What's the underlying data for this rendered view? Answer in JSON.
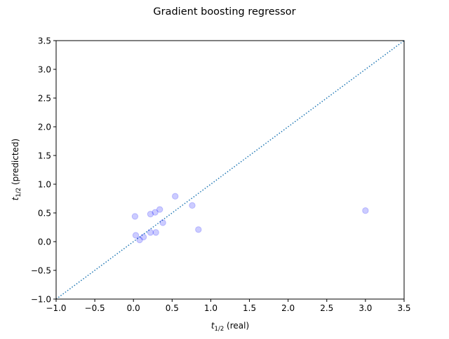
{
  "chart_data": {
    "type": "scatter",
    "title": "Gradient boosting regressor",
    "xlabel": {
      "main": "t",
      "sub": "1/2",
      "rest": " (real)"
    },
    "ylabel": {
      "main": "t",
      "sub": "1/2",
      "rest": " (predicted)"
    },
    "xlim": [
      -1.0,
      3.5
    ],
    "ylim": [
      -1.0,
      3.5
    ],
    "xticks": [
      -1.0,
      -0.5,
      0.0,
      0.5,
      1.0,
      1.5,
      2.0,
      2.5,
      3.0,
      3.5
    ],
    "yticks": [
      -1.0,
      -0.5,
      0.0,
      0.5,
      1.0,
      1.5,
      2.0,
      2.5,
      3.0,
      3.5
    ],
    "grid": false,
    "reference_line": {
      "style": "dotted",
      "color": "#1f77b4",
      "from": [
        -1.0,
        -1.0
      ],
      "to": [
        3.5,
        3.5
      ]
    },
    "marker_color": "#0000ff",
    "marker_alpha": 0.2,
    "points": [
      {
        "x": 0.02,
        "y": 0.44
      },
      {
        "x": 0.03,
        "y": 0.11
      },
      {
        "x": 0.08,
        "y": 0.03
      },
      {
        "x": 0.13,
        "y": 0.08
      },
      {
        "x": 0.22,
        "y": 0.48
      },
      {
        "x": 0.22,
        "y": 0.16
      },
      {
        "x": 0.28,
        "y": 0.51
      },
      {
        "x": 0.29,
        "y": 0.16
      },
      {
        "x": 0.34,
        "y": 0.56
      },
      {
        "x": 0.38,
        "y": 0.33
      },
      {
        "x": 0.54,
        "y": 0.79
      },
      {
        "x": 0.76,
        "y": 0.63
      },
      {
        "x": 0.84,
        "y": 0.21
      },
      {
        "x": 3.0,
        "y": 0.54
      }
    ]
  }
}
